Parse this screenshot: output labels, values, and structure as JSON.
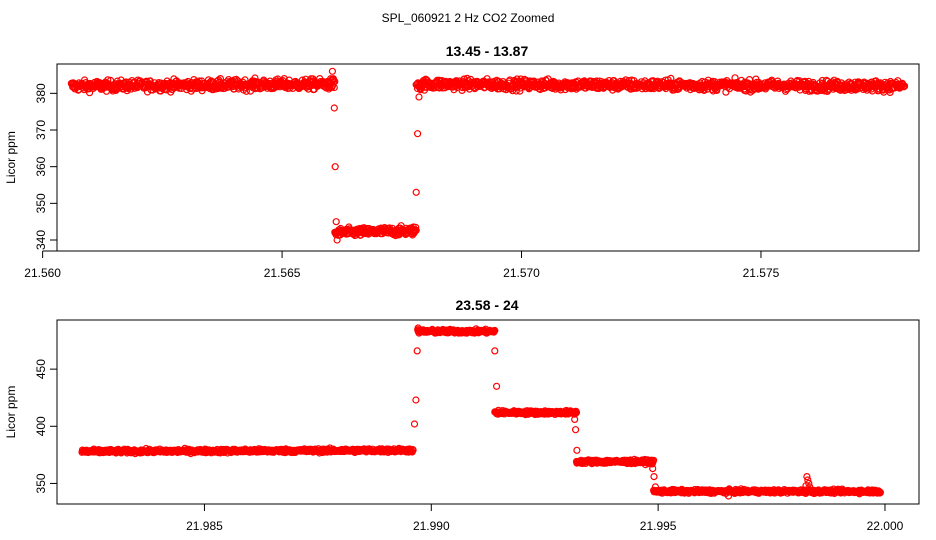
{
  "figure": {
    "main_title": "SPL_060921  2 Hz CO2 Zoomed",
    "colors": {
      "points": "#ff0000",
      "axes": "#000000",
      "background": "#ffffff"
    }
  },
  "chart_data": [
    {
      "type": "scatter",
      "title": "13.45 - 13.87",
      "xlabel": "",
      "ylabel": "Licor ppm",
      "xlim": [
        21.5603,
        21.5783
      ],
      "ylim": [
        337,
        388
      ],
      "xticks": [
        21.56,
        21.565,
        21.57,
        21.575
      ],
      "xtick_labels": [
        "21.560",
        "21.565",
        "21.570",
        "21.575"
      ],
      "yticks": [
        340,
        350,
        360,
        370,
        380
      ],
      "ytick_labels": [
        "340",
        "350",
        "360",
        "370",
        "380"
      ],
      "grid": false,
      "marker": "open-circle",
      "segments": [
        {
          "x_start": 21.5606,
          "x_end": 21.5661,
          "y_start": 382,
          "y_end": 382.5,
          "noise": 1.2
        },
        {
          "x_start": 21.5661,
          "x_end": 21.5678,
          "y_start": 342,
          "y_end": 342.5,
          "noise": 1.0
        },
        {
          "x_start": 21.5678,
          "x_end": 21.578,
          "y_start": 382.5,
          "y_end": 382,
          "noise": 1.2
        }
      ],
      "transition_points": [
        {
          "x": 21.56605,
          "y": 386
        },
        {
          "x": 21.56607,
          "y": 384
        },
        {
          "x": 21.56609,
          "y": 376
        },
        {
          "x": 21.56611,
          "y": 360
        },
        {
          "x": 21.56613,
          "y": 345
        },
        {
          "x": 21.56615,
          "y": 340
        },
        {
          "x": 21.5678,
          "y": 353
        },
        {
          "x": 21.56783,
          "y": 369
        },
        {
          "x": 21.56786,
          "y": 379
        },
        {
          "x": 21.56789,
          "y": 381
        }
      ]
    },
    {
      "type": "scatter",
      "title": "23.58 - 24",
      "xlabel": "",
      "ylabel": "Licor ppm",
      "xlim": [
        21.98175,
        22.00075
      ],
      "ylim": [
        332,
        493
      ],
      "xticks": [
        21.985,
        21.99,
        21.995,
        22.0
      ],
      "xtick_labels": [
        "21.985",
        "21.990",
        "21.995",
        "22.000"
      ],
      "yticks": [
        350,
        400,
        450
      ],
      "ytick_labels": [
        "350",
        "400",
        "450"
      ],
      "grid": false,
      "marker": "open-circle",
      "segments": [
        {
          "x_start": 21.9823,
          "x_end": 21.9896,
          "y_start": 378,
          "y_end": 379,
          "noise": 1.4
        },
        {
          "x_start": 21.9897,
          "x_end": 21.9914,
          "y_start": 483,
          "y_end": 483,
          "noise": 1.4
        },
        {
          "x_start": 21.9914,
          "x_end": 21.9932,
          "y_start": 412,
          "y_end": 412,
          "noise": 1.4
        },
        {
          "x_start": 21.9932,
          "x_end": 21.9949,
          "y_start": 369,
          "y_end": 369,
          "noise": 1.4
        },
        {
          "x_start": 21.9949,
          "x_end": 21.9999,
          "y_start": 343,
          "y_end": 343,
          "noise": 1.3
        }
      ],
      "transition_points": [
        {
          "x": 21.98963,
          "y": 402
        },
        {
          "x": 21.98966,
          "y": 423
        },
        {
          "x": 21.98969,
          "y": 466
        },
        {
          "x": 21.98971,
          "y": 486
        },
        {
          "x": 21.9914,
          "y": 466
        },
        {
          "x": 21.99144,
          "y": 435
        },
        {
          "x": 21.99148,
          "y": 414
        },
        {
          "x": 21.99316,
          "y": 406
        },
        {
          "x": 21.99318,
          "y": 397
        },
        {
          "x": 21.99321,
          "y": 379
        },
        {
          "x": 21.99488,
          "y": 363
        },
        {
          "x": 21.99491,
          "y": 356
        },
        {
          "x": 21.99494,
          "y": 347
        },
        {
          "x": 21.99828,
          "y": 356
        },
        {
          "x": 21.9983,
          "y": 353
        },
        {
          "x": 21.99832,
          "y": 350
        },
        {
          "x": 21.99826,
          "y": 348
        },
        {
          "x": 21.99834,
          "y": 347
        },
        {
          "x": 21.99655,
          "y": 339
        }
      ]
    }
  ]
}
